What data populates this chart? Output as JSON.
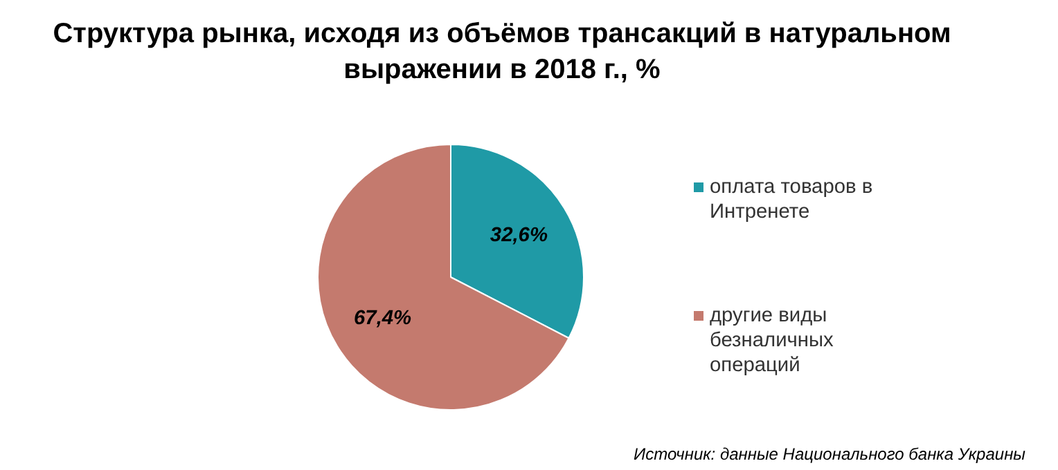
{
  "chart_data": {
    "type": "pie",
    "title": "Структура рынка, исходя из объёмов трансакций в натуральном выражении в 2018 г., %",
    "categories": [
      "оплата товаров в Интренете",
      "другие виды безналичных операций"
    ],
    "values": [
      32.6,
      67.4
    ],
    "colors": [
      "#1f9aa6",
      "#c47a6e"
    ],
    "value_labels": [
      "32,6%",
      "67,4%"
    ],
    "legend": "right",
    "annotations": [
      "Источник: данные Национального банка Украины"
    ]
  }
}
